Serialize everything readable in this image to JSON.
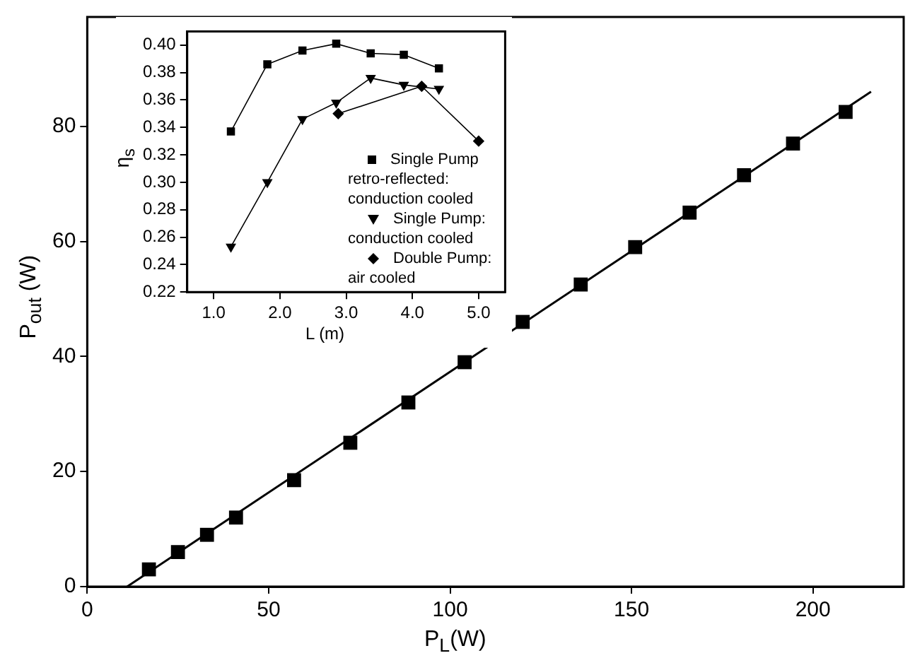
{
  "chart_data": [
    {
      "type": "scatter",
      "xlabel": "P$_{L}$(W)",
      "ylabel": "P$_{out}$ (W)",
      "xlim": [
        0,
        225
      ],
      "xticks": [
        0,
        50,
        100,
        150,
        200
      ],
      "ylim": [
        0,
        99
      ],
      "yticks": [
        0,
        20,
        40,
        60,
        80
      ],
      "marker": "square",
      "series": [
        {
          "color": "#000000",
          "x": [
            17,
            25,
            33,
            41,
            57,
            72.5,
            88.5,
            104,
            120,
            136,
            151,
            166,
            181,
            194.5,
            209
          ],
          "values": [
            3,
            6,
            9,
            12,
            18.5,
            25,
            32,
            39,
            46,
            52.5,
            59,
            65,
            71.5,
            77,
            82.5
          ]
        },
        {
          "type": "line",
          "color": "#000000",
          "marker": "none",
          "x": [
            11,
            216
          ],
          "values": [
            0,
            86
          ]
        }
      ]
    },
    {
      "type": "line",
      "xlabel": "L (m)",
      "ylabel": "η$_{s}$",
      "xlim": [
        0.6,
        5.4
      ],
      "xticks": [
        {
          "value": 1,
          "label": "1.0"
        },
        {
          "value": 2,
          "label": "2.0"
        },
        {
          "value": 3,
          "label": "3.0"
        },
        {
          "value": 4,
          "label": "4.0"
        },
        {
          "value": 5,
          "label": "5.0"
        }
      ],
      "ylim": [
        0.22,
        0.41
      ],
      "yticks": [
        {
          "value": 0.22,
          "label": "0.22"
        },
        {
          "value": 0.24,
          "label": "0.24"
        },
        {
          "value": 0.26,
          "label": "0.26"
        },
        {
          "value": 0.28,
          "label": "0.28"
        },
        {
          "value": 0.3,
          "label": "0.30"
        },
        {
          "value": 0.32,
          "label": "0.32"
        },
        {
          "value": 0.34,
          "label": "0.34"
        },
        {
          "value": 0.36,
          "label": "0.36"
        },
        {
          "value": 0.38,
          "label": "0.38"
        },
        {
          "value": 0.4,
          "label": "0.40"
        }
      ],
      "legend": "bottom right",
      "series": [
        {
          "name": "Single Pump retro-reflected: conduction cooled",
          "color": "#000000",
          "marker": "square",
          "x": [
            1.26,
            1.81,
            2.34,
            2.85,
            3.37,
            3.87,
            4.4
          ],
          "values": [
            0.337,
            0.386,
            0.396,
            0.401,
            0.394,
            0.393,
            0.383
          ]
        },
        {
          "name": "Single Pump: conduction cooled",
          "color": "#000000",
          "marker": "triangle",
          "x": [
            1.26,
            1.81,
            2.34,
            2.85,
            3.37,
            3.87,
            4.4
          ],
          "values": [
            0.253,
            0.3,
            0.346,
            0.358,
            0.376,
            0.371,
            0.368
          ]
        },
        {
          "name": "Double Pump: air cooled",
          "color": "#000000",
          "marker": "diamond",
          "x": [
            2.88,
            4.14,
            5.0
          ],
          "values": [
            0.35,
            0.37,
            0.33
          ]
        }
      ]
    }
  ]
}
